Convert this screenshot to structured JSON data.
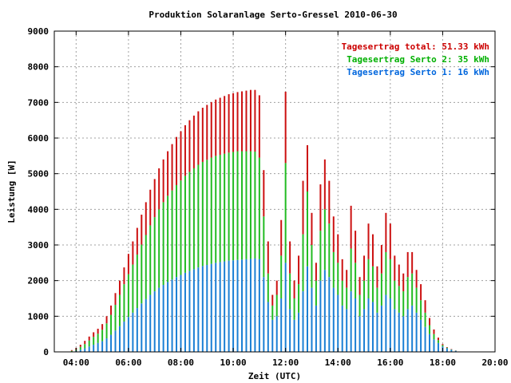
{
  "chart_data": {
    "type": "bar",
    "stacked": true,
    "title": "Produktion Solaranlage Serto-Gressel 2010-06-30",
    "xlabel": "Zeit (UTC)",
    "ylabel": "Leistung [W]",
    "xlim": [
      "03:10",
      "20:00"
    ],
    "ylim": [
      0,
      9000
    ],
    "yticks": [
      0,
      1000,
      2000,
      3000,
      4000,
      5000,
      6000,
      7000,
      8000,
      9000
    ],
    "xticks": [
      "04:00",
      "06:00",
      "08:00",
      "10:00",
      "12:00",
      "14:00",
      "16:00",
      "18:00",
      "20:00"
    ],
    "grid": true,
    "legend_position": "top-right",
    "legend": [
      {
        "text": "Tagesertrag total: 51.33 kWh",
        "color": "#cc0000"
      },
      {
        "text": "Tagesertrag Serto 2: 35 kWh",
        "color": "#00b000"
      },
      {
        "text": "Tagesertrag Serto 1: 16 kWh",
        "color": "#0066dd"
      }
    ],
    "series_colors": {
      "serto1": "#1a7fd4",
      "serto2": "#22bb22",
      "total": "#cc1111"
    },
    "x": [
      "03:50",
      "04:00",
      "04:10",
      "04:20",
      "04:30",
      "04:40",
      "04:50",
      "05:00",
      "05:10",
      "05:20",
      "05:30",
      "05:40",
      "05:50",
      "06:00",
      "06:10",
      "06:20",
      "06:30",
      "06:40",
      "06:50",
      "07:00",
      "07:10",
      "07:20",
      "07:30",
      "07:40",
      "07:50",
      "08:00",
      "08:10",
      "08:20",
      "08:30",
      "08:40",
      "08:50",
      "09:00",
      "09:10",
      "09:20",
      "09:30",
      "09:40",
      "09:50",
      "10:00",
      "10:10",
      "10:20",
      "10:30",
      "10:40",
      "10:50",
      "11:00",
      "11:10",
      "11:20",
      "11:30",
      "11:40",
      "11:50",
      "12:00",
      "12:10",
      "12:20",
      "12:30",
      "12:40",
      "12:50",
      "13:00",
      "13:10",
      "13:20",
      "13:30",
      "13:40",
      "13:50",
      "14:00",
      "14:10",
      "14:20",
      "14:30",
      "14:40",
      "14:50",
      "15:00",
      "15:10",
      "15:20",
      "15:30",
      "15:40",
      "15:50",
      "16:00",
      "16:10",
      "16:20",
      "16:30",
      "16:40",
      "16:50",
      "17:00",
      "17:10",
      "17:20",
      "17:30",
      "17:40",
      "17:50",
      "18:00",
      "18:10",
      "18:20",
      "18:30",
      "18:40",
      "18:50",
      "19:00",
      "19:10",
      "19:20"
    ],
    "series": [
      {
        "values": [
          10,
          30,
          60,
          100,
          150,
          200,
          250,
          300,
          380,
          480,
          600,
          720,
          850,
          980,
          1100,
          1230,
          1360,
          1480,
          1600,
          1700,
          1800,
          1880,
          1960,
          2030,
          2100,
          2160,
          2220,
          2270,
          2320,
          2370,
          2410,
          2440,
          2470,
          2500,
          2520,
          2540,
          2560,
          2570,
          2580,
          2590,
          2600,
          2610,
          2620,
          2600,
          2100,
          1400,
          900,
          1000,
          1500,
          2500,
          1200,
          900,
          1100,
          1700,
          2400,
          1800,
          1300,
          2000,
          2300,
          2100,
          1800,
          1600,
          1300,
          1200,
          1700,
          1500,
          1000,
          1200,
          1500,
          1400,
          1100,
          1300,
          1600,
          1500,
          1200,
          1100,
          1000,
          1200,
          1300,
          1100,
          900,
          700,
          500,
          350,
          250,
          150,
          100,
          60,
          30,
          10,
          5,
          0,
          0,
          0
        ]
      },
      {
        "values": [
          20,
          40,
          80,
          120,
          170,
          220,
          260,
          320,
          420,
          560,
          720,
          880,
          1050,
          1200,
          1350,
          1500,
          1650,
          1800,
          1950,
          2080,
          2200,
          2320,
          2420,
          2500,
          2580,
          2650,
          2720,
          2780,
          2830,
          2880,
          2920,
          2950,
          2980,
          3000,
          3010,
          3020,
          3030,
          3040,
          3050,
          3040,
          3030,
          3020,
          3000,
          2850,
          1700,
          800,
          400,
          600,
          1200,
          2800,
          1000,
          600,
          800,
          1600,
          2100,
          1200,
          700,
          1400,
          1700,
          1500,
          1000,
          900,
          700,
          600,
          1200,
          1000,
          600,
          800,
          1100,
          1000,
          700,
          900,
          1200,
          1100,
          800,
          750,
          700,
          900,
          900,
          700,
          550,
          400,
          250,
          150,
          80,
          40,
          20,
          10,
          5,
          0,
          0,
          0,
          0,
          0
        ]
      },
      {
        "values": [
          20,
          40,
          60,
          90,
          110,
          130,
          140,
          160,
          200,
          260,
          330,
          400,
          470,
          570,
          650,
          750,
          840,
          920,
          1000,
          1070,
          1150,
          1200,
          1250,
          1300,
          1350,
          1380,
          1420,
          1450,
          1480,
          1500,
          1520,
          1540,
          1560,
          1580,
          1600,
          1620,
          1640,
          1650,
          1660,
          1680,
          1700,
          1720,
          1730,
          1750,
          1300,
          900,
          300,
          400,
          1000,
          2000,
          900,
          500,
          800,
          1500,
          1300,
          900,
          500,
          1300,
          1400,
          1200,
          1000,
          800,
          600,
          500,
          1200,
          900,
          500,
          700,
          1000,
          900,
          600,
          800,
          1100,
          1000,
          700,
          600,
          500,
          700,
          600,
          500,
          450,
          350,
          200,
          130,
          70,
          30,
          15,
          10,
          5,
          0,
          0,
          0,
          0,
          0
        ]
      }
    ]
  }
}
